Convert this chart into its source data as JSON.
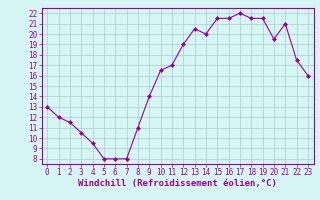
{
  "x": [
    0,
    1,
    2,
    3,
    4,
    5,
    6,
    7,
    8,
    9,
    10,
    11,
    12,
    13,
    14,
    15,
    16,
    17,
    18,
    19,
    20,
    21,
    22,
    23
  ],
  "y": [
    13,
    12,
    11.5,
    10.5,
    9.5,
    8,
    8,
    8,
    11,
    14,
    16.5,
    17,
    19,
    20.5,
    20,
    21.5,
    21.5,
    22,
    21.5,
    21.5,
    19.5,
    21,
    17.5,
    16
  ],
  "line_color": "#990099",
  "marker": "D",
  "markersize": 2,
  "linewidth": 0.8,
  "xlabel": "Windchill (Refroidissement éolien,°C)",
  "xlabel_fontsize": 6.5,
  "bg_color": "#d6f5f5",
  "grid_color": "#aacccc",
  "tick_color": "#990099",
  "label_color": "#990099",
  "xlim": [
    -0.5,
    23.5
  ],
  "ylim": [
    7.5,
    22.5
  ],
  "yticks": [
    8,
    9,
    10,
    11,
    12,
    13,
    14,
    15,
    16,
    17,
    18,
    19,
    20,
    21,
    22
  ],
  "xticks": [
    0,
    1,
    2,
    3,
    4,
    5,
    6,
    7,
    8,
    9,
    10,
    11,
    12,
    13,
    14,
    15,
    16,
    17,
    18,
    19,
    20,
    21,
    22,
    23
  ],
  "tick_fontsize": 5.5
}
